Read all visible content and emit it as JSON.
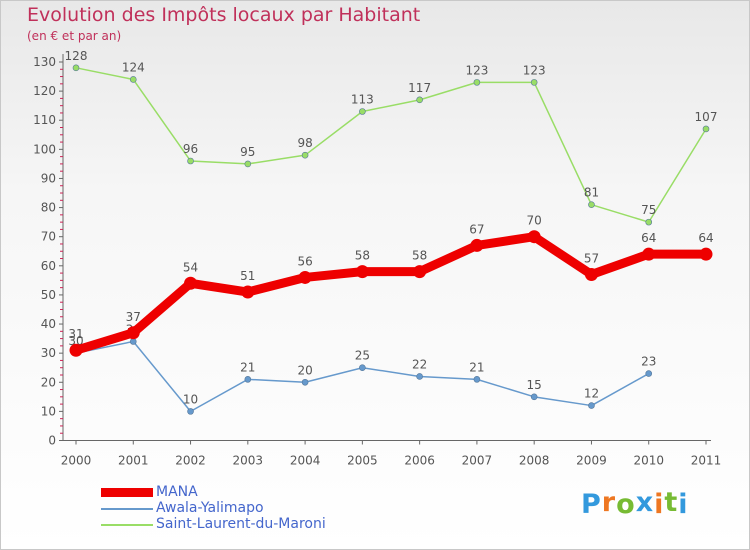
{
  "header": {
    "title": "Evolution des Impôts locaux par Habitant",
    "subtitle": "(en € et par an)"
  },
  "colors": {
    "title": "#c0305a",
    "axis": "#666666",
    "grid_tick": "#cc2255"
  },
  "chart_data": {
    "type": "line",
    "x": [
      "2000",
      "2001",
      "2002",
      "2003",
      "2004",
      "2005",
      "2006",
      "2007",
      "2008",
      "2009",
      "2010",
      "2011"
    ],
    "y_ticks": [
      "0",
      "10",
      "20",
      "30",
      "40",
      "50",
      "60",
      "70",
      "80",
      "90",
      "100",
      "110",
      "120",
      "130"
    ],
    "ylim": [
      0,
      130
    ],
    "grid": false,
    "legend_position": "bottom-left",
    "series": [
      {
        "name": "MANA",
        "color": "#ee0000",
        "values": [
          31,
          37,
          54,
          51,
          56,
          58,
          58,
          67,
          70,
          57,
          64,
          64
        ],
        "labels": [
          "31",
          "37",
          "54",
          "51",
          "56",
          "58",
          "58",
          "67",
          "70",
          "57",
          "64",
          "64"
        ]
      },
      {
        "name": "Awala-Yalimapo",
        "color": "#6699cc",
        "values": [
          30,
          34,
          10,
          21,
          20,
          25,
          22,
          21,
          15,
          12,
          23,
          null
        ],
        "labels": [
          "30",
          "34",
          "10",
          "21",
          "20",
          "25",
          "22",
          "21",
          "15",
          "12",
          "23",
          ""
        ]
      },
      {
        "name": "Saint-Laurent-du-Maroni",
        "color": "#99dd66",
        "values": [
          128,
          124,
          96,
          95,
          98,
          113,
          117,
          123,
          123,
          81,
          75,
          107
        ],
        "labels": [
          "128",
          "124",
          "96",
          "95",
          "98",
          "113",
          "117",
          "123",
          "123",
          "81",
          "75",
          "107"
        ]
      }
    ]
  },
  "legend": {
    "items": [
      {
        "label": "MANA",
        "color": "#ee0000"
      },
      {
        "label": "Awala-Yalimapo",
        "color": "#6699cc"
      },
      {
        "label": "Saint-Laurent-du-Maroni",
        "color": "#99dd66"
      }
    ]
  },
  "logo": {
    "letters": [
      "P",
      "r",
      "o",
      "x",
      "i",
      "t",
      "i"
    ],
    "colors": [
      "#3399dd",
      "#ee7722",
      "#77bb33",
      "#3399dd",
      "#ee7722",
      "#77bb33",
      "#3399dd"
    ]
  }
}
